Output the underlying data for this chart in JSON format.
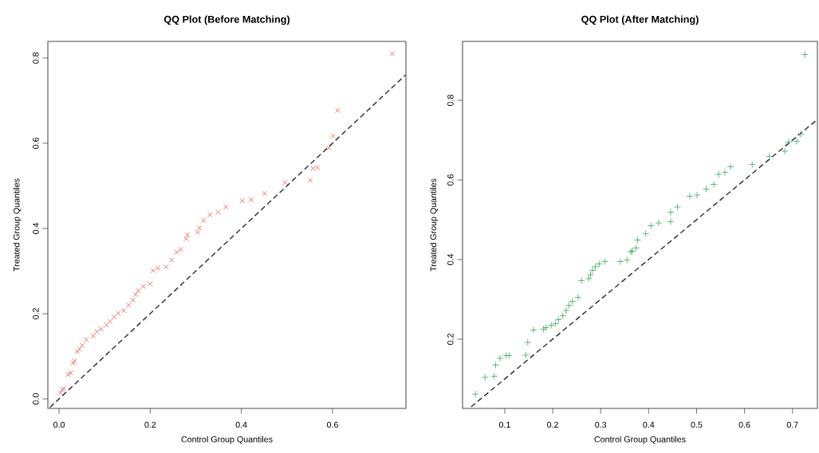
{
  "chart_data": [
    {
      "type": "scatter",
      "title": "QQ Plot (Before Matching)",
      "xlabel": "Control Group Quantiles",
      "ylabel": "Treated Group Quantiles",
      "xlim": [
        -0.0245,
        0.761
      ],
      "ylim": [
        -0.0224,
        0.839
      ],
      "xticks": [
        {
          "value": 0,
          "label": "0.0"
        },
        0.2,
        0.4,
        0.6
      ],
      "yticks": [
        {
          "value": 0,
          "label": "0.0"
        },
        0.2,
        0.4,
        0.6,
        0.8
      ],
      "series": [
        {
          "marker": "cross",
          "color": "#e0584a",
          "x": [
            0.003,
            0.0075,
            0.0105,
            0.02,
            0.026,
            0.031,
            0.034,
            0.04,
            0.045,
            0.051,
            0.06,
            0.075,
            0.083,
            0.092,
            0.104,
            0.112,
            0.121,
            0.13,
            0.142,
            0.153,
            0.162,
            0.168,
            0.174,
            0.185,
            0.2,
            0.206,
            0.217,
            0.235,
            0.247,
            0.258,
            0.267,
            0.279,
            0.282,
            0.304,
            0.308,
            0.317,
            0.331,
            0.349,
            0.366,
            0.402,
            0.422,
            0.451,
            0.496,
            0.551,
            0.557,
            0.567,
            0.592,
            0.601,
            0.611,
            0.731
          ],
          "values": [
            0.014,
            0.021,
            0.024,
            0.057,
            0.061,
            0.084,
            0.089,
            0.111,
            0.117,
            0.126,
            0.139,
            0.148,
            0.158,
            0.164,
            0.173,
            0.182,
            0.192,
            0.201,
            0.207,
            0.22,
            0.232,
            0.245,
            0.254,
            0.264,
            0.27,
            0.301,
            0.307,
            0.31,
            0.326,
            0.344,
            0.351,
            0.376,
            0.385,
            0.391,
            0.401,
            0.419,
            0.432,
            0.438,
            0.45,
            0.465,
            0.467,
            0.482,
            0.508,
            0.513,
            0.541,
            0.543,
            0.589,
            0.617,
            0.677,
            0.81
          ]
        },
        {
          "type": "line",
          "color": "#333333",
          "line_style": "dashed",
          "x": [
            -0.02,
            0.76
          ],
          "values": [
            -0.02,
            0.76
          ]
        }
      ]
    },
    {
      "type": "scatter",
      "title": "QQ Plot (After Matching)",
      "xlabel": "Control Group Quantiles",
      "ylabel": "Treated Group Quantiles",
      "xlim": [
        0.012,
        0.752
      ],
      "ylim": [
        0.026,
        0.948
      ],
      "xticks": [
        0.1,
        0.2,
        0.3,
        0.4,
        0.5,
        0.6,
        0.7
      ],
      "yticks": [
        0.2,
        0.4,
        0.6,
        0.8
      ],
      "series": [
        {
          "color": "#3aa85c",
          "x": [
            0.039,
            0.059,
            0.078,
            0.081,
            0.09,
            0.103,
            0.109,
            0.144,
            0.148,
            0.16,
            0.181,
            0.186,
            0.197,
            0.206,
            0.212,
            0.221,
            0.228,
            0.234,
            0.241,
            0.253,
            0.26,
            0.275,
            0.279,
            0.283,
            0.289,
            0.297,
            0.309,
            0.341,
            0.355,
            0.363,
            0.366,
            0.374,
            0.377,
            0.394,
            0.405,
            0.421,
            0.446,
            0.446,
            0.46,
            0.486,
            0.501,
            0.52,
            0.536,
            0.546,
            0.559,
            0.571,
            0.616,
            0.652,
            0.684,
            0.692,
            0.709,
            0.717,
            0.726
          ],
          "values": [
            0.062,
            0.104,
            0.107,
            0.135,
            0.152,
            0.159,
            0.159,
            0.16,
            0.192,
            0.223,
            0.225,
            0.229,
            0.235,
            0.239,
            0.249,
            0.259,
            0.272,
            0.285,
            0.295,
            0.305,
            0.347,
            0.352,
            0.362,
            0.373,
            0.382,
            0.389,
            0.395,
            0.395,
            0.399,
            0.419,
            0.422,
            0.429,
            0.449,
            0.465,
            0.485,
            0.492,
            0.495,
            0.519,
            0.532,
            0.559,
            0.562,
            0.577,
            0.589,
            0.614,
            0.619,
            0.633,
            0.639,
            0.659,
            0.672,
            0.695,
            0.697,
            0.715,
            0.915
          ]
        },
        {
          "type": "line",
          "color": "#333333",
          "line_style": "dashed",
          "x": [
            0.03,
            0.75
          ],
          "values": [
            0.03,
            0.75
          ]
        }
      ]
    }
  ]
}
